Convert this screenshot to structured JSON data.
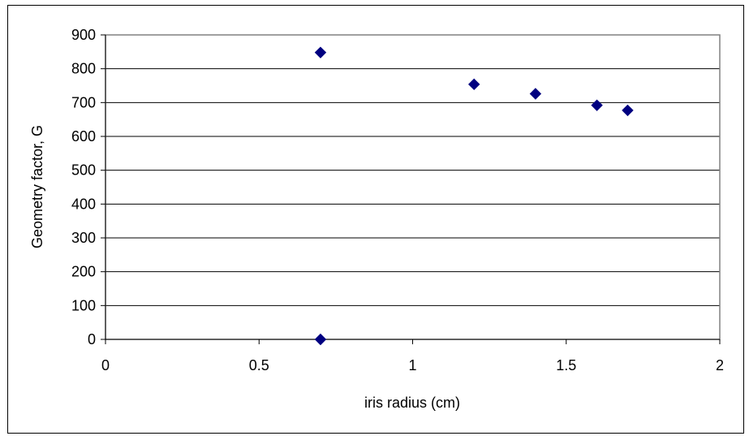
{
  "chart_data": {
    "type": "scatter",
    "title": "",
    "xlabel": "iris radius (cm)",
    "ylabel": "Geometry factor, G",
    "xlim": [
      0,
      2
    ],
    "ylim": [
      0,
      900
    ],
    "x_ticks": [
      0,
      0.5,
      1,
      1.5,
      2
    ],
    "x_tick_labels": [
      "0",
      "0.5",
      "1",
      "1.5",
      "2"
    ],
    "y_ticks": [
      0,
      100,
      200,
      300,
      400,
      500,
      600,
      700,
      800,
      900
    ],
    "y_tick_labels": [
      "0",
      "100",
      "200",
      "300",
      "400",
      "500",
      "600",
      "700",
      "800",
      "900"
    ],
    "grid": "horizontal",
    "legend": "none",
    "marker": "diamond",
    "marker_color": "#000080",
    "points": [
      {
        "x": 0.7,
        "y": 848
      },
      {
        "x": 0.7,
        "y": 0
      },
      {
        "x": 1.2,
        "y": 754
      },
      {
        "x": 1.4,
        "y": 726
      },
      {
        "x": 1.6,
        "y": 692
      },
      {
        "x": 1.7,
        "y": 677
      }
    ]
  }
}
